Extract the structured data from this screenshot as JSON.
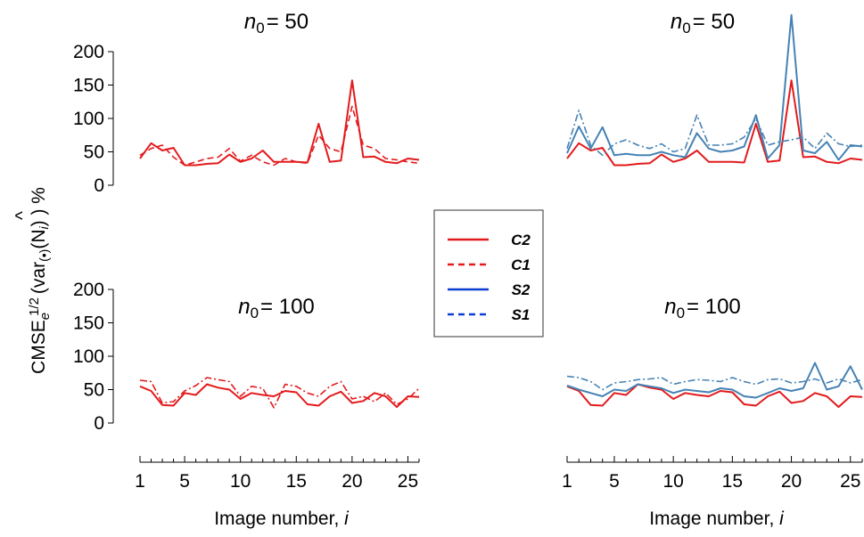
{
  "chart_data": {
    "type": "line",
    "ylabel": "CMSE",
    "ylabel_sub": "e",
    "ylabel_sup": "1/2",
    "ylabel_rest": "(var",
    "ylabel_var_sub": "(•)",
    "ylabel_arg": "(N",
    "ylabel_arg_sub": "i",
    "ylabel_hat": "^",
    "ylabel_close": ") ) %",
    "yticks": [
      0,
      50,
      100,
      150,
      200
    ],
    "ylim": [
      0,
      200
    ],
    "xlim": [
      1,
      26
    ],
    "xticks": [
      1,
      5,
      10,
      15,
      20,
      25
    ],
    "xlabel_text": "Image number, ",
    "xlabel_var": "i",
    "grid": false,
    "legend_position": "center",
    "legend": [
      {
        "label": "C2",
        "color": "#e31a1c",
        "dash": "solid"
      },
      {
        "label": "C1",
        "color": "#e31a1c",
        "dash": "dashed"
      },
      {
        "label": "S2",
        "color": "#0b3fd1",
        "dash": "solid"
      },
      {
        "label": "S1",
        "color": "#0b3fd1",
        "dash": "dashed"
      }
    ],
    "panels": [
      {
        "title_var": "n",
        "title_sub": "0",
        "title_rest": "= 50",
        "series": [
          {
            "name": "C2",
            "color": "#e31a1c",
            "dash": "solid",
            "x": [
              1,
              2,
              3,
              4,
              5,
              6,
              7,
              8,
              9,
              10,
              11,
              12,
              13,
              14,
              15,
              16,
              17,
              18,
              19,
              20,
              21,
              22,
              23,
              24,
              25,
              26
            ],
            "values": [
              40,
              63,
              52,
              56,
              30,
              30,
              32,
              33,
              46,
              35,
              40,
              52,
              35,
              35,
              35,
              34,
              92,
              35,
              37,
              157,
              42,
              43,
              35,
              33,
              40,
              38
            ]
          },
          {
            "name": "C1",
            "color": "#e31a1c",
            "dash": "dashed",
            "x": [
              1,
              2,
              3,
              4,
              5,
              6,
              7,
              8,
              9,
              10,
              11,
              12,
              13,
              14,
              15,
              16,
              17,
              18,
              19,
              20,
              21,
              22,
              23,
              24,
              25,
              26
            ],
            "values": [
              45,
              55,
              60,
              42,
              30,
              35,
              40,
              42,
              55,
              36,
              45,
              35,
              30,
              40,
              35,
              33,
              75,
              55,
              50,
              118,
              60,
              55,
              40,
              38,
              35,
              33
            ]
          }
        ]
      },
      {
        "title_var": "n",
        "title_sub": "0",
        "title_rest": "= 50",
        "series": [
          {
            "name": "C2",
            "color": "#e31a1c",
            "dash": "solid",
            "x": [
              1,
              2,
              3,
              4,
              5,
              6,
              7,
              8,
              9,
              10,
              11,
              12,
              13,
              14,
              15,
              16,
              17,
              18,
              19,
              20,
              21,
              22,
              23,
              24,
              25,
              26
            ],
            "values": [
              40,
              63,
              52,
              56,
              30,
              30,
              32,
              33,
              46,
              35,
              40,
              52,
              35,
              35,
              35,
              34,
              92,
              35,
              37,
              157,
              42,
              43,
              35,
              33,
              40,
              38
            ]
          },
          {
            "name": "S2",
            "color": "#4682b4",
            "dash": "solid",
            "x": [
              1,
              2,
              3,
              4,
              5,
              6,
              7,
              8,
              9,
              10,
              11,
              12,
              13,
              14,
              15,
              16,
              17,
              18,
              19,
              20,
              21,
              22,
              23,
              24,
              25,
              26
            ],
            "values": [
              48,
              88,
              55,
              87,
              45,
              47,
              45,
              45,
              50,
              45,
              42,
              78,
              55,
              50,
              52,
              58,
              105,
              40,
              60,
              255,
              52,
              48,
              65,
              38,
              60,
              58
            ]
          },
          {
            "name": "S1",
            "color": "#4682b4",
            "dash": "dashdot",
            "x": [
              1,
              2,
              3,
              4,
              5,
              6,
              7,
              8,
              9,
              10,
              11,
              12,
              13,
              14,
              15,
              16,
              17,
              18,
              19,
              20,
              21,
              22,
              23,
              24,
              25,
              26
            ],
            "values": [
              55,
              112,
              60,
              45,
              62,
              68,
              60,
              55,
              62,
              50,
              55,
              105,
              60,
              60,
              62,
              72,
              100,
              60,
              65,
              68,
              72,
              55,
              78,
              62,
              58,
              60
            ]
          }
        ]
      },
      {
        "title_var": "n",
        "title_sub": "0",
        "title_rest": "= 100",
        "series": [
          {
            "name": "C2",
            "color": "#e31a1c",
            "dash": "solid",
            "x": [
              1,
              2,
              3,
              4,
              5,
              6,
              7,
              8,
              9,
              10,
              11,
              12,
              13,
              14,
              15,
              16,
              17,
              18,
              19,
              20,
              21,
              22,
              23,
              24,
              25,
              26
            ],
            "values": [
              55,
              48,
              27,
              26,
              45,
              42,
              58,
              53,
              50,
              36,
              45,
              42,
              40,
              48,
              46,
              28,
              26,
              40,
              47,
              30,
              33,
              45,
              40,
              24,
              40,
              39
            ]
          },
          {
            "name": "C1",
            "color": "#e31a1c",
            "dash": "dashdot",
            "x": [
              1,
              2,
              3,
              4,
              5,
              6,
              7,
              8,
              9,
              10,
              11,
              12,
              13,
              14,
              15,
              16,
              17,
              18,
              19,
              20,
              21,
              22,
              23,
              24,
              25,
              26
            ],
            "values": [
              64,
              62,
              30,
              32,
              48,
              56,
              68,
              65,
              62,
              40,
              55,
              52,
              23,
              58,
              55,
              45,
              40,
              55,
              62,
              36,
              40,
              32,
              45,
              28,
              36,
              52
            ]
          }
        ]
      },
      {
        "title_var": "n",
        "title_sub": "0",
        "title_rest": "= 100",
        "series": [
          {
            "name": "C2",
            "color": "#e31a1c",
            "dash": "solid",
            "x": [
              1,
              2,
              3,
              4,
              5,
              6,
              7,
              8,
              9,
              10,
              11,
              12,
              13,
              14,
              15,
              16,
              17,
              18,
              19,
              20,
              21,
              22,
              23,
              24,
              25,
              26
            ],
            "values": [
              55,
              48,
              27,
              26,
              45,
              42,
              58,
              53,
              50,
              36,
              45,
              42,
              40,
              48,
              46,
              28,
              26,
              40,
              47,
              30,
              33,
              45,
              40,
              24,
              40,
              39
            ]
          },
          {
            "name": "S2",
            "color": "#4682b4",
            "dash": "solid",
            "x": [
              1,
              2,
              3,
              4,
              5,
              6,
              7,
              8,
              9,
              10,
              11,
              12,
              13,
              14,
              15,
              16,
              17,
              18,
              19,
              20,
              21,
              22,
              23,
              24,
              25,
              26
            ],
            "values": [
              56,
              50,
              45,
              40,
              50,
              48,
              58,
              55,
              52,
              45,
              50,
              48,
              46,
              52,
              50,
              40,
              38,
              45,
              52,
              48,
              52,
              90,
              50,
              55,
              85,
              50
            ]
          },
          {
            "name": "S1",
            "color": "#4682b4",
            "dash": "dashdot",
            "x": [
              1,
              2,
              3,
              4,
              5,
              6,
              7,
              8,
              9,
              10,
              11,
              12,
              13,
              14,
              15,
              16,
              17,
              18,
              19,
              20,
              21,
              22,
              23,
              24,
              25,
              26
            ],
            "values": [
              70,
              68,
              62,
              50,
              60,
              62,
              65,
              66,
              68,
              58,
              62,
              65,
              64,
              62,
              68,
              62,
              58,
              65,
              66,
              60,
              62,
              66,
              60,
              66,
              60,
              65
            ]
          }
        ]
      }
    ]
  }
}
